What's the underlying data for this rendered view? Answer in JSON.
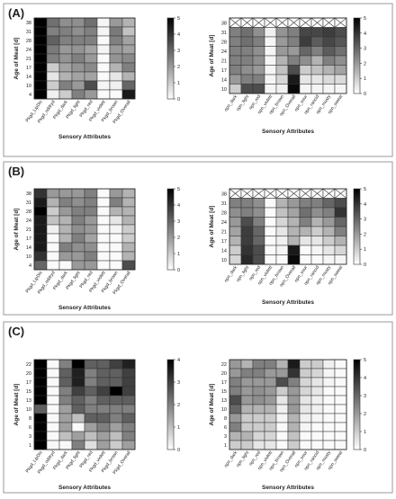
{
  "chart_data": [
    {
      "type": "heatmap",
      "panel": "(A)",
      "side": "left",
      "xlabel": "Sensory Attributes",
      "ylabel": "Age of Meat [d]",
      "x": [
        "Pkgd_LipDis",
        "Pkgd_oddryd",
        "Pkgd_dark",
        "Pkgd_light",
        "Pkgd_red",
        "Pkgd_violett",
        "Pkgd_brown",
        "Pkgd_Overall"
      ],
      "y": [
        "38",
        "31",
        "28",
        "24",
        "21",
        "17",
        "14",
        "10",
        "4"
      ],
      "scale": {
        "min": 0,
        "max": 5,
        "ticks": [
          "0",
          "1",
          "2",
          "3",
          "4",
          "5"
        ]
      },
      "values": [
        [
          5,
          2.8,
          2.2,
          2.2,
          2.8,
          0.2,
          2.0,
          1.5
        ],
        [
          5,
          2.5,
          2.5,
          2.2,
          2.5,
          0.2,
          2.6,
          1.2
        ],
        [
          5,
          3.1,
          2.5,
          2.5,
          2.5,
          0.1,
          2.5,
          1.8
        ],
        [
          5,
          2.6,
          2.0,
          2.1,
          1.8,
          0.2,
          2.0,
          1.8
        ],
        [
          5,
          2.5,
          2.1,
          2.5,
          2.0,
          0.1,
          2.1,
          2.3
        ],
        [
          5,
          1.0,
          1.8,
          2.1,
          2.3,
          0.1,
          1.5,
          2.5
        ],
        [
          5,
          0.5,
          1.5,
          1.8,
          1.8,
          0.1,
          0.5,
          1.5
        ],
        [
          5,
          1.0,
          2.5,
          2.0,
          3.5,
          0.2,
          0.3,
          3.0
        ],
        [
          5,
          0.3,
          1.0,
          2.5,
          2.0,
          0.1,
          0.1,
          4.5
        ]
      ]
    },
    {
      "type": "heatmap",
      "panel": "(A)",
      "side": "right",
      "xlabel": "Sensory Attributes",
      "ylabel": "Age of Meat [d]",
      "x": [
        "opn_dark",
        "opn_light",
        "opn_red",
        "opn_violett",
        "opn_brown",
        "opn_Overall",
        "opn_sour",
        "opn_rancid",
        "opn_musty",
        "opn_sweat"
      ],
      "y": [
        "38",
        "31",
        "28",
        "24",
        "21",
        "17",
        "14",
        "10"
      ],
      "scale": {
        "min": 0,
        "max": 5,
        "ticks": [
          "0",
          "1",
          "2",
          "3",
          "4",
          "5"
        ]
      },
      "na_rows": [
        0
      ],
      "values": [
        [
          0,
          0,
          0,
          0,
          0,
          0,
          0,
          0,
          0,
          0
        ],
        [
          2.5,
          2.8,
          2.2,
          0.3,
          2.1,
          2.5,
          3.6,
          3.6,
          3.8,
          3.5
        ],
        [
          2.5,
          2.8,
          2.5,
          0.2,
          2.0,
          2.5,
          3.8,
          3.2,
          3.6,
          3.3
        ],
        [
          2.5,
          2.5,
          2.2,
          0.2,
          2.0,
          2.0,
          3.0,
          2.5,
          3.2,
          2.8
        ],
        [
          2.5,
          2.5,
          2.2,
          0.2,
          1.5,
          2.5,
          2.2,
          1.5,
          2.5,
          2.2
        ],
        [
          2.5,
          2.2,
          2.0,
          0.2,
          1.2,
          3.5,
          1.0,
          1.2,
          1.5,
          1.8
        ],
        [
          2.0,
          2.5,
          2.5,
          0.2,
          0.8,
          4.5,
          0.5,
          0.5,
          0.7,
          0.7
        ],
        [
          1.0,
          3.5,
          3.5,
          0.2,
          0.3,
          4.8,
          0.2,
          0.2,
          0.2,
          0.2
        ]
      ]
    },
    {
      "type": "heatmap",
      "panel": "(B)",
      "side": "left",
      "xlabel": "Sensory Attributes",
      "ylabel": "Age of Meat [d]",
      "x": [
        "Pkgd_LipDis",
        "Pkgd_oddryd",
        "Pkgd_dark",
        "Pkgd_light",
        "Pkgd_red",
        "Pkgd_violett",
        "Pkgd_brown",
        "Pkgd_Overall"
      ],
      "y": [
        "38",
        "31",
        "28",
        "24",
        "21",
        "17",
        "14",
        "10",
        "4"
      ],
      "scale": {
        "min": 0,
        "max": 5,
        "ticks": [
          "0",
          "1",
          "2",
          "3",
          "4",
          "5"
        ]
      },
      "values": [
        [
          4.0,
          2.0,
          2.0,
          2.0,
          2.5,
          0.1,
          2.0,
          1.5
        ],
        [
          4.5,
          1.5,
          2.5,
          2.2,
          2.5,
          0.1,
          2.5,
          1.5
        ],
        [
          5.0,
          1.0,
          2.0,
          2.5,
          2.5,
          0.1,
          1.5,
          1.5
        ],
        [
          4.5,
          1.2,
          1.5,
          2.5,
          2.0,
          0.1,
          0.5,
          1.5
        ],
        [
          4.5,
          0.3,
          1.5,
          2.2,
          2.0,
          0.1,
          0.2,
          1.0
        ],
        [
          4.5,
          0.1,
          1.5,
          2.5,
          1.8,
          0.1,
          0.1,
          1.0
        ],
        [
          4.5,
          0.1,
          2.5,
          2.2,
          2.2,
          0.1,
          0.1,
          1.5
        ],
        [
          4.0,
          0.1,
          2.0,
          2.0,
          2.5,
          0.1,
          0.1,
          1.5
        ],
        [
          3.0,
          0.1,
          0.1,
          2.0,
          2.0,
          0.1,
          0.1,
          3.5
        ]
      ]
    },
    {
      "type": "heatmap",
      "panel": "(B)",
      "side": "right",
      "xlabel": "Sensory Attributes",
      "ylabel": "Age of Meat [d]",
      "x": [
        "opn_dark",
        "opn_light",
        "opn_red",
        "opn_violett",
        "opn_brown",
        "opn_Overall",
        "opn_sour",
        "opn_rancid",
        "opn_musty",
        "opn_sweat"
      ],
      "y": [
        "38",
        "31",
        "28",
        "24",
        "21",
        "17",
        "14",
        "10"
      ],
      "scale": {
        "min": 0,
        "max": 5,
        "ticks": [
          "0",
          "1",
          "2",
          "3",
          "4",
          "5"
        ]
      },
      "na_rows": [
        0
      ],
      "values": [
        [
          0,
          0,
          0,
          0,
          0,
          0,
          0,
          0,
          0,
          0
        ],
        [
          2.5,
          2.5,
          2.2,
          0.1,
          1.5,
          2.0,
          2.5,
          2.5,
          3.0,
          3.5
        ],
        [
          2.2,
          2.5,
          2.2,
          0.1,
          1.2,
          1.8,
          2.8,
          2.2,
          2.5,
          4.0
        ],
        [
          2.0,
          3.5,
          2.5,
          0.1,
          0.8,
          1.5,
          2.5,
          1.5,
          2.0,
          3.0
        ],
        [
          1.8,
          3.8,
          3.0,
          0.1,
          0.5,
          1.5,
          1.5,
          1.0,
          1.5,
          2.5
        ],
        [
          1.5,
          3.8,
          3.0,
          0.1,
          0.3,
          1.5,
          0.5,
          0.5,
          1.0,
          1.5
        ],
        [
          1.0,
          4.0,
          3.5,
          0.1,
          0.2,
          4.5,
          0.1,
          0.2,
          0.5,
          0.8
        ],
        [
          0.8,
          4.2,
          3.5,
          0.1,
          0.1,
          4.8,
          0.1,
          0.1,
          0.2,
          0.2
        ]
      ]
    },
    {
      "type": "heatmap",
      "panel": "(C)",
      "side": "left",
      "xlabel": "Sensory Attributes",
      "ylabel": "Age of Meat [d]",
      "x": [
        "Pkgd_LipDis",
        "Pkgd_oddryd",
        "Pkgd_dark",
        "Pkgd_light",
        "Pkgd_red",
        "Pkgd_violett",
        "Pkgd_brown",
        "Pkgd_Overall"
      ],
      "y": [
        "22",
        "20",
        "17",
        "15",
        "13",
        "10",
        "8",
        "6",
        "3",
        "1"
      ],
      "scale": {
        "min": 0,
        "max": 4,
        "ticks": [
          "0",
          "1",
          "2",
          "3",
          "4"
        ]
      },
      "values": [
        [
          4.0,
          0.1,
          2.0,
          4.0,
          2.5,
          2.5,
          3.0,
          3.5
        ],
        [
          4.0,
          0.1,
          2.5,
          3.5,
          2.0,
          2.5,
          2.5,
          3.0
        ],
        [
          4.0,
          0.1,
          2.5,
          3.5,
          2.0,
          2.5,
          2.5,
          3.0
        ],
        [
          4.0,
          0.1,
          2.0,
          3.0,
          2.5,
          3.0,
          4.0,
          3.0
        ],
        [
          4.0,
          0.1,
          2.0,
          2.5,
          2.0,
          2.5,
          2.5,
          2.5
        ],
        [
          2.5,
          0.1,
          1.5,
          2.5,
          2.0,
          2.0,
          2.0,
          2.0
        ],
        [
          4.0,
          0.1,
          1.5,
          1.0,
          2.5,
          2.5,
          2.0,
          2.5
        ],
        [
          4.0,
          0.1,
          1.5,
          0.1,
          1.5,
          2.0,
          1.5,
          2.0
        ],
        [
          4.0,
          0.1,
          1.0,
          1.5,
          1.0,
          1.5,
          1.0,
          2.0
        ],
        [
          4.0,
          0.1,
          0.1,
          2.0,
          0.5,
          1.5,
          0.8,
          1.5
        ]
      ]
    },
    {
      "type": "heatmap",
      "panel": "(C)",
      "side": "right",
      "xlabel": "Sensory Attributes",
      "ylabel": "Age of Meat [d]",
      "x": [
        "opn_dark",
        "opn_light",
        "opn_red",
        "opn_violett",
        "opn_brown",
        "opn_Overall",
        "opn_sour",
        "opn_rancid",
        "opn_musty",
        "opn_sweat"
      ],
      "y": [
        "22",
        "20",
        "17",
        "15",
        "13",
        "10",
        "8",
        "6",
        "3",
        "1"
      ],
      "scale": {
        "min": 0,
        "max": 5,
        "ticks": [
          "0",
          "1",
          "2",
          "3",
          "4",
          "5"
        ]
      },
      "values": [
        [
          2.0,
          1.5,
          2.5,
          2.5,
          1.5,
          4.5,
          1.0,
          1.0,
          0.3,
          0.1
        ],
        [
          2.0,
          2.5,
          2.5,
          2.0,
          2.0,
          4.0,
          1.0,
          0.8,
          0.2,
          0.1
        ],
        [
          2.5,
          2.0,
          2.0,
          2.0,
          3.5,
          2.5,
          0.8,
          0.5,
          0.2,
          0.1
        ],
        [
          2.5,
          2.0,
          2.2,
          2.0,
          1.0,
          2.0,
          0.8,
          0.5,
          0.1,
          0.1
        ],
        [
          3.5,
          2.0,
          2.2,
          2.0,
          0.5,
          2.0,
          0.5,
          0.3,
          0.1,
          0.1
        ],
        [
          3.0,
          1.5,
          1.5,
          1.5,
          0.3,
          2.0,
          0.5,
          0.3,
          0.1,
          0.1
        ],
        [
          2.0,
          1.0,
          1.0,
          1.0,
          0.2,
          1.5,
          0.3,
          0.2,
          0.1,
          0.1
        ],
        [
          2.5,
          1.0,
          1.0,
          1.0,
          0.1,
          1.5,
          0.2,
          0.1,
          0.1,
          0.1
        ],
        [
          1.5,
          1.5,
          0.8,
          0.8,
          0.1,
          1.2,
          0.1,
          0.1,
          0.1,
          0.1
        ],
        [
          1.0,
          1.0,
          0.5,
          0.5,
          0.1,
          1.0,
          0.1,
          0.1,
          0.1,
          0.1
        ]
      ]
    }
  ]
}
